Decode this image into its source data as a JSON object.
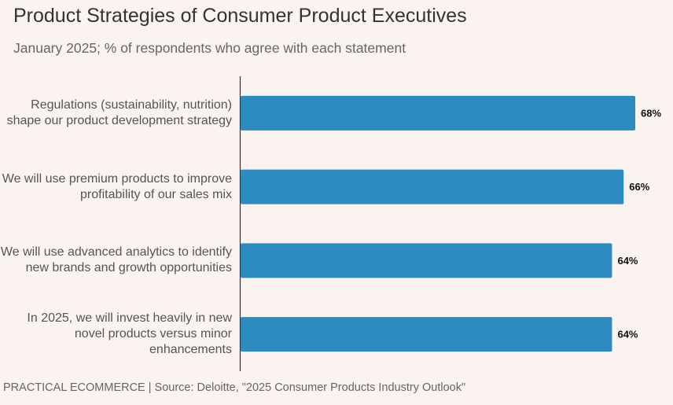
{
  "title": "Product Strategies of Consumer Product Executives",
  "subtitle": "January 2025; % of respondents who agree with each statement",
  "footer": "PRACTICAL ECOMMERCE | Source: Deloitte, \"2025 Consumer Products Industry Outlook\"",
  "colors": {
    "bar": "#2e8bc0",
    "background": "#fbf3f0",
    "axis": "#333333"
  },
  "chart_data": {
    "type": "bar",
    "orientation": "horizontal",
    "title": "Product Strategies of Consumer Product Executives",
    "subtitle": "January 2025; % of respondents who agree with each statement",
    "categories": [
      "Regulations (sustainability, nutrition) shape our product development strategy",
      "We will use premium products to improve profitability of our sales mix",
      "We will use advanced analytics to identify new brands and growth opportunities",
      "In 2025, we will invest heavily in new novel products versus minor enhancements"
    ],
    "values": [
      68,
      66,
      64,
      64
    ],
    "value_labels": [
      "68%",
      "66%",
      "64%",
      "64%"
    ],
    "xlim": [
      0,
      68
    ],
    "xlabel": "",
    "ylabel": "",
    "grid": false,
    "legend": "none"
  }
}
